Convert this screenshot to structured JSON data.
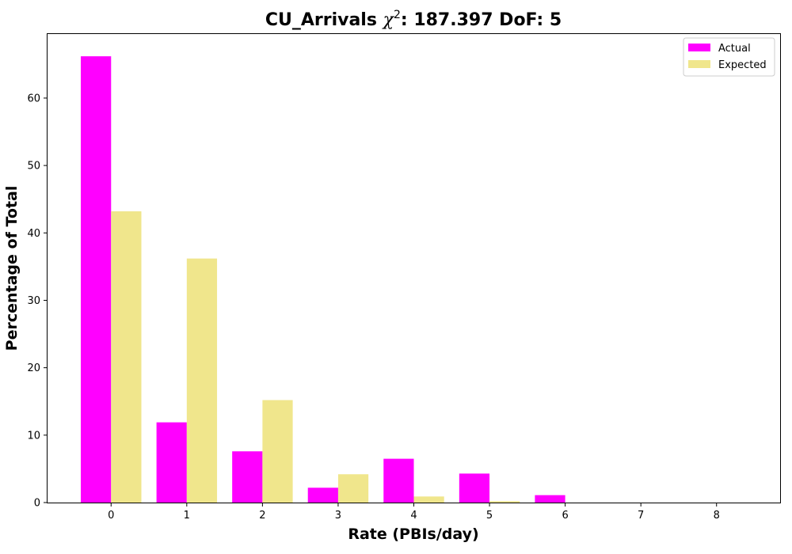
{
  "chart_data": {
    "type": "bar",
    "title": {
      "prefix": "CU_Arrivals ",
      "chi_symbol": "χ",
      "chi_superscript": "2",
      "suffix": ": 187.397 DoF: 5"
    },
    "xlabel": "Rate (PBIs/day)",
    "ylabel": "Percentage of Total",
    "categories": [
      "0",
      "1",
      "2",
      "3",
      "4",
      "5",
      "6",
      "7",
      "8"
    ],
    "x": [
      0,
      1,
      2,
      3,
      4,
      5,
      6,
      7,
      8
    ],
    "series": [
      {
        "name": "Actual",
        "color": "#ff00ff",
        "values": [
          66.2,
          11.9,
          7.6,
          2.2,
          6.5,
          4.3,
          1.1,
          0,
          0
        ]
      },
      {
        "name": "Expected",
        "color": "#f0e68c",
        "values": [
          43.2,
          36.2,
          15.2,
          4.2,
          0.9,
          0.2,
          0,
          0,
          0
        ]
      }
    ],
    "xlim": [
      -0.84,
      8.84
    ],
    "ylim": [
      0,
      69.5
    ],
    "yticks": [
      0,
      10,
      20,
      30,
      40,
      50,
      60
    ],
    "grid": false,
    "legend_position": "upper-right"
  }
}
